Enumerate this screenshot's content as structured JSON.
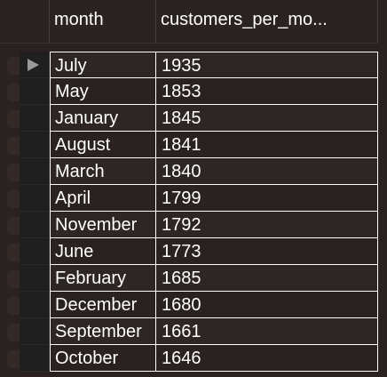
{
  "table": {
    "columns": [
      "month",
      "customers_per_mo..."
    ],
    "rows": [
      {
        "month": "July",
        "customers": "1935"
      },
      {
        "month": "May",
        "customers": "1853"
      },
      {
        "month": "January",
        "customers": "1845"
      },
      {
        "month": "August",
        "customers": "1841"
      },
      {
        "month": "March",
        "customers": "1840"
      },
      {
        "month": "April",
        "customers": "1799"
      },
      {
        "month": "November",
        "customers": "1792"
      },
      {
        "month": "June",
        "customers": "1773"
      },
      {
        "month": "February",
        "customers": "1685"
      },
      {
        "month": "December",
        "customers": "1680"
      },
      {
        "month": "September",
        "customers": "1661"
      },
      {
        "month": "October",
        "customers": "1646"
      }
    ],
    "current_row_index": 0
  },
  "icons": {
    "current_row": "play-triangle-icon"
  }
}
